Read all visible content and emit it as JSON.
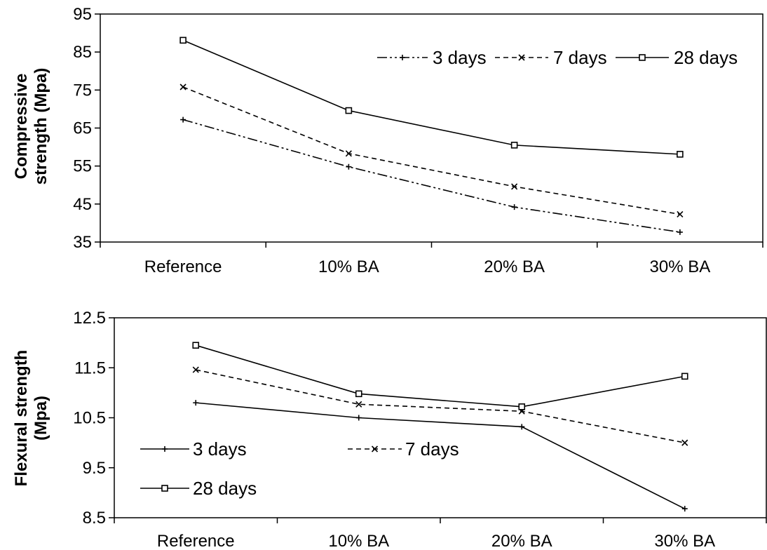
{
  "chart_data": [
    {
      "type": "line",
      "categories": [
        "Reference",
        "10% BA",
        "20% BA",
        "30% BA"
      ],
      "ylabel": [
        "Compressive",
        "strength (Mpa)"
      ],
      "ylim": [
        35,
        95
      ],
      "yticks": [
        "35",
        "45",
        "55",
        "65",
        "75",
        "85",
        "95"
      ],
      "grid": false,
      "legend": "top-right",
      "series": [
        {
          "name": "3 days",
          "values": [
            67.2,
            54.8,
            44.2,
            37.6
          ]
        },
        {
          "name": "7 days",
          "values": [
            75.8,
            58.3,
            49.6,
            42.3
          ]
        },
        {
          "name": "28 days",
          "values": [
            88.1,
            69.6,
            60.5,
            58.1
          ]
        }
      ]
    },
    {
      "type": "line",
      "categories": [
        "Reference",
        "10% BA",
        "20% BA",
        "30% BA"
      ],
      "ylabel": [
        "Flexural strength",
        "(Mpa)"
      ],
      "ylim": [
        8.5,
        12.5
      ],
      "yticks": [
        "8.5",
        "9.5",
        "10.5",
        "11.5",
        "12.5"
      ],
      "grid": false,
      "legend": "bottom-left",
      "series": [
        {
          "name": "3 days",
          "values": [
            10.8,
            10.5,
            10.32,
            8.68
          ]
        },
        {
          "name": "7 days",
          "values": [
            11.46,
            10.77,
            10.63,
            10.0
          ]
        },
        {
          "name": "28 days",
          "values": [
            11.95,
            10.98,
            10.72,
            11.33
          ]
        }
      ]
    }
  ]
}
